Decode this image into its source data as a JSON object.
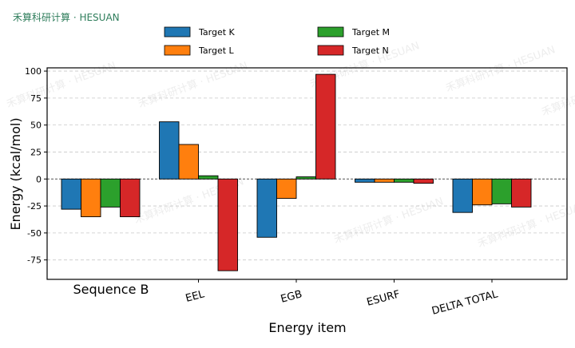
{
  "header": {
    "brand": "禾算科研计算 · HESUAN"
  },
  "watermark": {
    "text": "禾算科研计算 · HESUAN"
  },
  "chart_data": {
    "type": "bar",
    "xlabel": "Energy item",
    "ylabel": "Energy (kcal/mol)",
    "categories": [
      "Sequence B",
      "EEL",
      "EGB",
      "ESURF",
      "DELTA TOTAL"
    ],
    "ylim": [
      -93,
      103
    ],
    "yticks": [
      100,
      75,
      50,
      25,
      0,
      -25,
      -50,
      -75
    ],
    "grid": true,
    "legend_position": "top",
    "series": [
      {
        "name": "Target K",
        "color": "#1f77b4",
        "values": [
          -28,
          53,
          -54,
          -3,
          -31
        ]
      },
      {
        "name": "Target L",
        "color": "#ff7f0e",
        "values": [
          -35,
          32,
          -18,
          -3,
          -24
        ]
      },
      {
        "name": "Target M",
        "color": "#2ca02c",
        "values": [
          -26,
          3,
          2,
          -3,
          -23
        ]
      },
      {
        "name": "Target N",
        "color": "#d62728",
        "values": [
          -35,
          -85,
          97,
          -4,
          -26
        ]
      }
    ]
  }
}
